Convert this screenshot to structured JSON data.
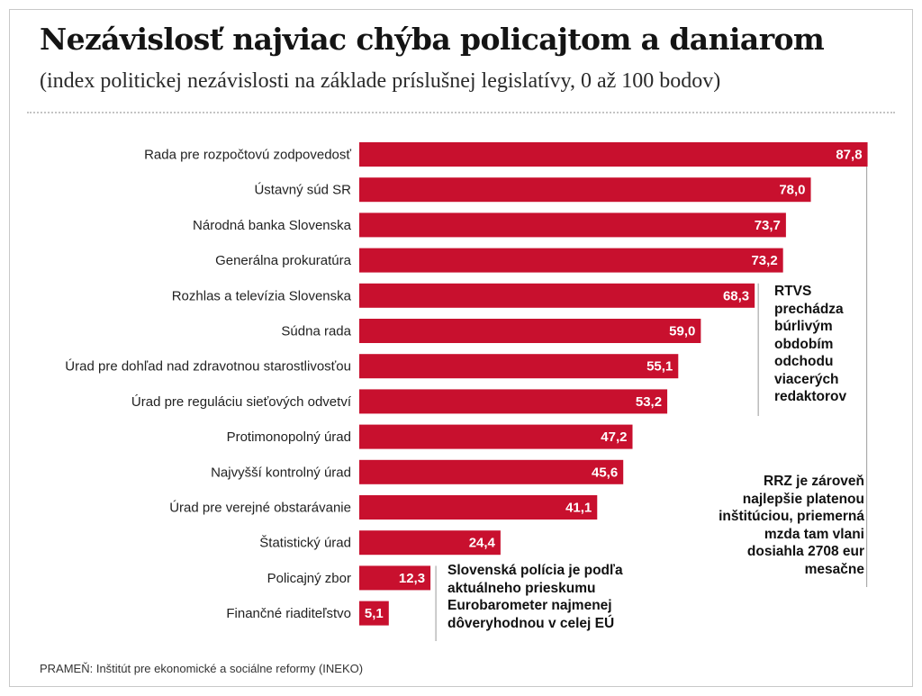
{
  "header": {
    "title": "Nezávislosť najviac chýba policajtom a daniarom",
    "subtitle": "(index politickej nezávislosti na základe príslušnej legislatívy, 0 až 100 bodov)"
  },
  "annotations": {
    "rtvs": "RTVS prechádza búrlivým obdobím odchodu viacerých redaktorov",
    "rrz": "RRZ je zároveň najlepšie platenou inštitúciou, priemerná mzda tam vlani dosiahla 2708 eur mesačne",
    "policia": "Slovenská polícia je podľa aktuálneho prieskumu Eurobarometer najmenej dôveryhodnou v celej EÚ"
  },
  "source": "PRAMEŇ: Inštitút pre ekonomické a sociálne reformy (INEKO)",
  "colors": {
    "bar": "#c8102e",
    "leader": "#aaaaaa"
  },
  "chart_data": {
    "type": "bar",
    "orientation": "horizontal",
    "title": "Nezávislosť najviac chýba policajtom a daniarom",
    "subtitle": "(index politickej nezávislosti na základe príslušnej legislatívy, 0 až 100 bodov)",
    "xlim": [
      0,
      100
    ],
    "grid": false,
    "legend": "none",
    "categories": [
      "Rada pre rozpočtovú zodpovedosť",
      "Ústavný súd SR",
      "Národná banka Slovenska",
      "Generálna prokuratúra",
      "Rozhlas a televízia Slovenska",
      "Súdna rada",
      "Úrad pre dohľad nad zdravotnou starostlivosťou",
      "Úrad pre reguláciu sieťových odvetví",
      "Protimonopolný úrad",
      "Najvyšší kontrolný úrad",
      "Úrad pre verejné obstarávanie",
      "Štatistický úrad",
      "Policajný zbor",
      "Finančné riaditeľstvo"
    ],
    "values": [
      87.8,
      78.0,
      73.7,
      73.2,
      68.3,
      59.0,
      55.1,
      53.2,
      47.2,
      45.6,
      41.1,
      24.4,
      12.3,
      5.1
    ],
    "value_labels": [
      "87,8",
      "78,0",
      "73,7",
      "73,2",
      "68,3",
      "59,0",
      "55,1",
      "53,2",
      "47,2",
      "45,6",
      "41,1",
      "24,4",
      "12,3",
      "5,1"
    ]
  }
}
